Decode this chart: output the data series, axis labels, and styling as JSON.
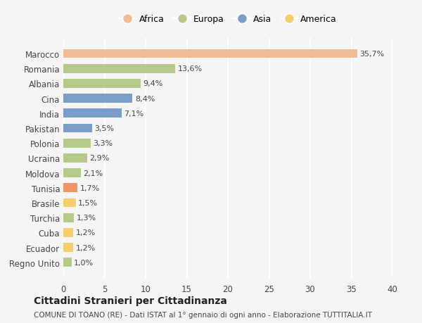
{
  "countries": [
    "Marocco",
    "Romania",
    "Albania",
    "Cina",
    "India",
    "Pakistan",
    "Polonia",
    "Ucraina",
    "Moldova",
    "Tunisia",
    "Brasile",
    "Turchia",
    "Cuba",
    "Ecuador",
    "Regno Unito"
  ],
  "values": [
    35.7,
    13.6,
    9.4,
    8.4,
    7.1,
    3.5,
    3.3,
    2.9,
    2.1,
    1.7,
    1.5,
    1.3,
    1.2,
    1.2,
    1.0
  ],
  "labels": [
    "35,7%",
    "13,6%",
    "9,4%",
    "8,4%",
    "7,1%",
    "3,5%",
    "3,3%",
    "2,9%",
    "2,1%",
    "1,7%",
    "1,5%",
    "1,3%",
    "1,2%",
    "1,2%",
    "1,0%"
  ],
  "colors": [
    "#f0bc94",
    "#b5c98a",
    "#b5c98a",
    "#7b9ec9",
    "#7b9ec9",
    "#7b9ec9",
    "#b5c98a",
    "#b5c98a",
    "#b5c98a",
    "#f0956a",
    "#f5d06a",
    "#b5c98a",
    "#f5d06a",
    "#f5d06a",
    "#b5c98a"
  ],
  "legend_labels": [
    "Africa",
    "Europa",
    "Asia",
    "America"
  ],
  "legend_colors": [
    "#f0bc94",
    "#b5c98a",
    "#7b9ec9",
    "#f5d06a"
  ],
  "title": "Cittadini Stranieri per Cittadinanza",
  "subtitle": "COMUNE DI TOANO (RE) - Dati ISTAT al 1° gennaio di ogni anno - Elaborazione TUTTITALIA.IT",
  "xlim": [
    0,
    40
  ],
  "xticks": [
    0,
    5,
    10,
    15,
    20,
    25,
    30,
    35,
    40
  ],
  "background_color": "#f5f5f5",
  "grid_color": "#ffffff"
}
